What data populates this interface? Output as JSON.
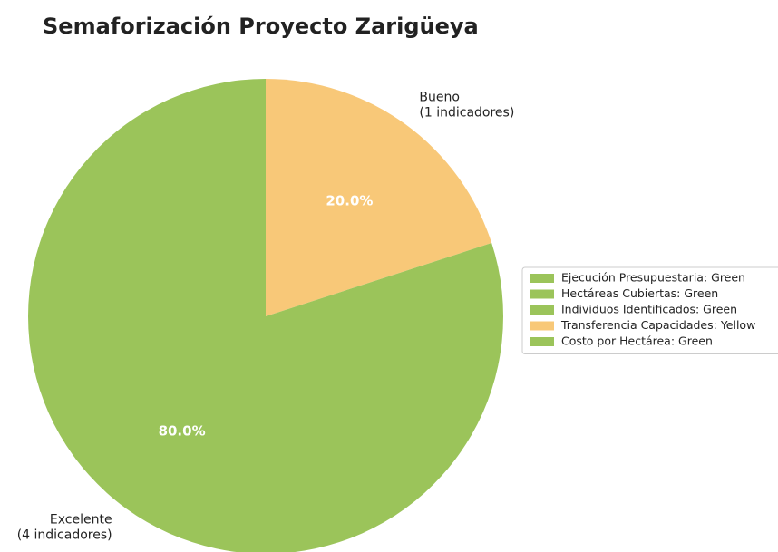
{
  "chart_data": {
    "type": "pie",
    "title": "Semaforización Proyecto Zarigüeya",
    "categories": [
      [
        "Bueno",
        "(1 indicadores)"
      ],
      [
        "Excelente",
        "(4 indicadores)"
      ]
    ],
    "values": [
      20,
      80
    ],
    "value_labels": [
      "20.0%",
      "80.0%"
    ],
    "colors": [
      "#f8c878",
      "#9bc45a"
    ],
    "legend": [
      {
        "name": "Ejecución Presupuestaria: Green",
        "color": "#9bc45a"
      },
      {
        "name": "Hectáreas Cubiertas: Green",
        "color": "#9bc45a"
      },
      {
        "name": "Individuos Identificados: Green",
        "color": "#9bc45a"
      },
      {
        "name": "Transferencia Capacidades: Yellow",
        "color": "#f8c878"
      },
      {
        "name": "Costo por Hectárea: Green",
        "color": "#9bc45a"
      }
    ]
  }
}
